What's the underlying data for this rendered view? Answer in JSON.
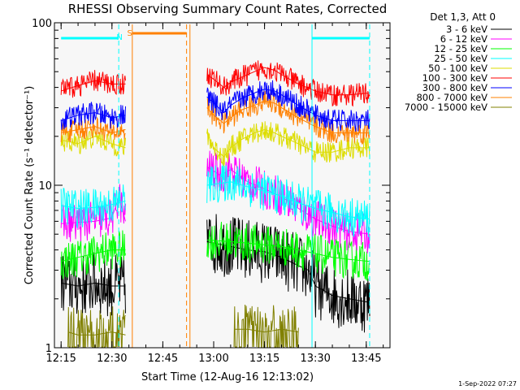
{
  "chart_data": {
    "type": "line",
    "title": "RHESSI Observing Summary Count Rates, Corrected",
    "xlabel": "Start Time (12-Aug-16 12:13:02)",
    "ylabel": "Corrected Count Rate (s⁻¹ detector⁻¹)",
    "yscale": "log",
    "ylim": [
      1,
      100
    ],
    "xlim": [
      "12:13:02",
      "13:52:00"
    ],
    "x_ticks": [
      "12:15",
      "12:30",
      "12:45",
      "13:00",
      "13:15",
      "13:30",
      "13:45"
    ],
    "y_ticks": [
      "1",
      "10",
      "100"
    ],
    "legend_header": "Det 1,3, Att 0",
    "legend_placement": "right",
    "grid": false,
    "footer_date": "1-Sep-2022 07:27",
    "series": [
      {
        "name": "3 - 6 keV",
        "color": "#000000",
        "segments": [
          {
            "x": [
              "12:15",
              "12:20",
              "12:25",
              "12:30",
              "12:34"
            ],
            "y": [
              2.5,
              2.4,
              2.5,
              2.4,
              2.4
            ]
          },
          {
            "x": [
              "12:58",
              "13:05",
              "13:10",
              "13:15",
              "13:20",
              "13:25",
              "13:28",
              "13:30",
              "13:35",
              "13:40",
              "13:46"
            ],
            "y": [
              4.5,
              4.2,
              4.0,
              3.9,
              3.6,
              3.2,
              3.0,
              2.4,
              2.1,
              2.0,
              1.9
            ]
          }
        ]
      },
      {
        "name": "6 - 12 keV",
        "color": "#ff00ff",
        "segments": [
          {
            "x": [
              "12:15",
              "12:20",
              "12:25",
              "12:30",
              "12:32",
              "12:34"
            ],
            "y": [
              5.8,
              5.9,
              6.0,
              6.3,
              8.5,
              6.0
            ]
          },
          {
            "x": [
              "12:58",
              "13:02",
              "13:05",
              "13:10",
              "13:15",
              "13:20",
              "13:25",
              "13:30",
              "13:35",
              "13:40",
              "13:46"
            ],
            "y": [
              13.0,
              11.5,
              12.5,
              10.5,
              9.5,
              8.5,
              7.2,
              6.2,
              5.6,
              5.2,
              5.0
            ]
          }
        ]
      },
      {
        "name": "12 - 25 keV",
        "color": "#00ff00",
        "segments": [
          {
            "x": [
              "12:15",
              "12:20",
              "12:25",
              "12:30",
              "12:34"
            ],
            "y": [
              3.4,
              3.6,
              3.8,
              4.0,
              4.0
            ]
          },
          {
            "x": [
              "12:58",
              "13:05",
              "13:10",
              "13:15",
              "13:20",
              "13:25",
              "13:30",
              "13:35",
              "13:40",
              "13:46"
            ],
            "y": [
              4.6,
              4.5,
              4.4,
              4.3,
              4.2,
              4.0,
              3.8,
              3.6,
              3.5,
              3.4
            ]
          }
        ]
      },
      {
        "name": "25 - 50 keV",
        "color": "#00ffff",
        "segments": [
          {
            "x": [
              "12:15",
              "12:20",
              "12:25",
              "12:30",
              "12:34"
            ],
            "y": [
              7.5,
              7.2,
              7.3,
              7.6,
              8.0
            ]
          },
          {
            "x": [
              "12:58",
              "13:05",
              "13:10",
              "13:15",
              "13:20",
              "13:25",
              "13:30",
              "13:35",
              "13:40",
              "13:46"
            ],
            "y": [
              10.0,
              10.5,
              9.8,
              9.2,
              8.6,
              7.8,
              7.2,
              6.8,
              6.4,
              6.2
            ]
          }
        ]
      },
      {
        "name": "50 - 100 keV",
        "color": "#dddd00",
        "segments": [
          {
            "x": [
              "12:15",
              "12:20",
              "12:25",
              "12:30",
              "12:34"
            ],
            "y": [
              19,
              18,
              20,
              18,
              17
            ]
          },
          {
            "x": [
              "12:58",
              "13:00",
              "13:03",
              "13:05",
              "13:08",
              "13:12",
              "13:15",
              "13:18",
              "13:20",
              "13:25",
              "13:30",
              "13:35",
              "13:40",
              "13:46"
            ],
            "y": [
              21,
              17,
              15,
              17,
              19,
              21,
              22,
              21,
              20,
              18,
              16,
              16,
              17,
              17
            ]
          }
        ]
      },
      {
        "name": "100 - 300 keV",
        "color": "#ff0000",
        "segments": [
          {
            "x": [
              "12:15",
              "12:20",
              "12:25",
              "12:30",
              "12:34"
            ],
            "y": [
              38,
              41,
              44,
              42,
              42
            ]
          },
          {
            "x": [
              "12:58",
              "13:00",
              "13:03",
              "13:05",
              "13:08",
              "13:12",
              "13:15",
              "13:18",
              "13:20",
              "13:25",
              "13:30",
              "13:35",
              "13:40",
              "13:46"
            ],
            "y": [
              48,
              45,
              40,
              43,
              46,
              50,
              53,
              51,
              48,
              42,
              38,
              36,
              36,
              37
            ]
          }
        ]
      },
      {
        "name": "300 - 800 keV",
        "color": "#0000ff",
        "segments": [
          {
            "x": [
              "12:15",
              "12:20",
              "12:25",
              "12:30",
              "12:34"
            ],
            "y": [
              25,
              27,
              28,
              26,
              27
            ]
          },
          {
            "x": [
              "12:58",
              "13:00",
              "13:03",
              "13:05",
              "13:08",
              "13:12",
              "13:15",
              "13:18",
              "13:20",
              "13:25",
              "13:30",
              "13:35",
              "13:40",
              "13:46"
            ],
            "y": [
              35,
              32,
              28,
              31,
              34,
              37,
              39,
              38,
              36,
              31,
              27,
              25,
              25,
              25
            ]
          }
        ]
      },
      {
        "name": "800 - 7000 keV",
        "color": "#ff8000",
        "segments": [
          {
            "x": [
              "12:15",
              "12:20",
              "12:25",
              "12:30",
              "12:34"
            ],
            "y": [
              21,
              22,
              23,
              21,
              22
            ]
          },
          {
            "x": [
              "12:58",
              "13:00",
              "13:03",
              "13:05",
              "13:08",
              "13:12",
              "13:15",
              "13:18",
              "13:20",
              "13:25",
              "13:30",
              "13:35",
              "13:40",
              "13:46"
            ],
            "y": [
              30,
              27,
              24,
              26,
              29,
              31,
              33,
              32,
              30,
              26,
              23,
              21,
              21,
              21
            ]
          }
        ]
      },
      {
        "name": "7000 - 15000 keV",
        "color": "#808000",
        "segments": [
          {
            "x": [
              "12:17",
              "12:20",
              "12:25",
              "12:30",
              "12:34"
            ],
            "y": [
              1.25,
              1.2,
              1.2,
              1.25,
              1.2
            ]
          },
          {
            "x": [
              "13:06",
              "13:10",
              "13:15",
              "13:20",
              "13:25"
            ],
            "y": [
              1.3,
              1.3,
              1.25,
              1.3,
              1.25
            ]
          }
        ]
      }
    ],
    "annotations": [
      {
        "text": "N",
        "x": "12:32",
        "color": "#00ffff"
      },
      {
        "text": "S",
        "x": "12:35",
        "color": "#ff8000"
      }
    ],
    "flags": {
      "night": {
        "color": "#00ffff",
        "intervals": [
          [
            "12:15",
            "12:32"
          ],
          [
            "13:29",
            "13:46"
          ]
        ]
      },
      "saa": {
        "color": "#ff8000",
        "intervals": [
          [
            "12:36",
            "12:52"
          ]
        ]
      },
      "data_gap_lines": [
        {
          "x": "12:32",
          "color": "#00ffff",
          "style": "dashed"
        },
        {
          "x": "12:36",
          "color": "#ff8000",
          "style": "solid"
        },
        {
          "x": "12:52",
          "color": "#ff8000",
          "style": "dashed"
        },
        {
          "x": "12:53",
          "color": "#ff8000",
          "style": "solid"
        },
        {
          "x": "13:29",
          "color": "#00ffff",
          "style": "solid"
        },
        {
          "x": "13:46",
          "color": "#00ffff",
          "style": "dashed"
        }
      ]
    }
  }
}
